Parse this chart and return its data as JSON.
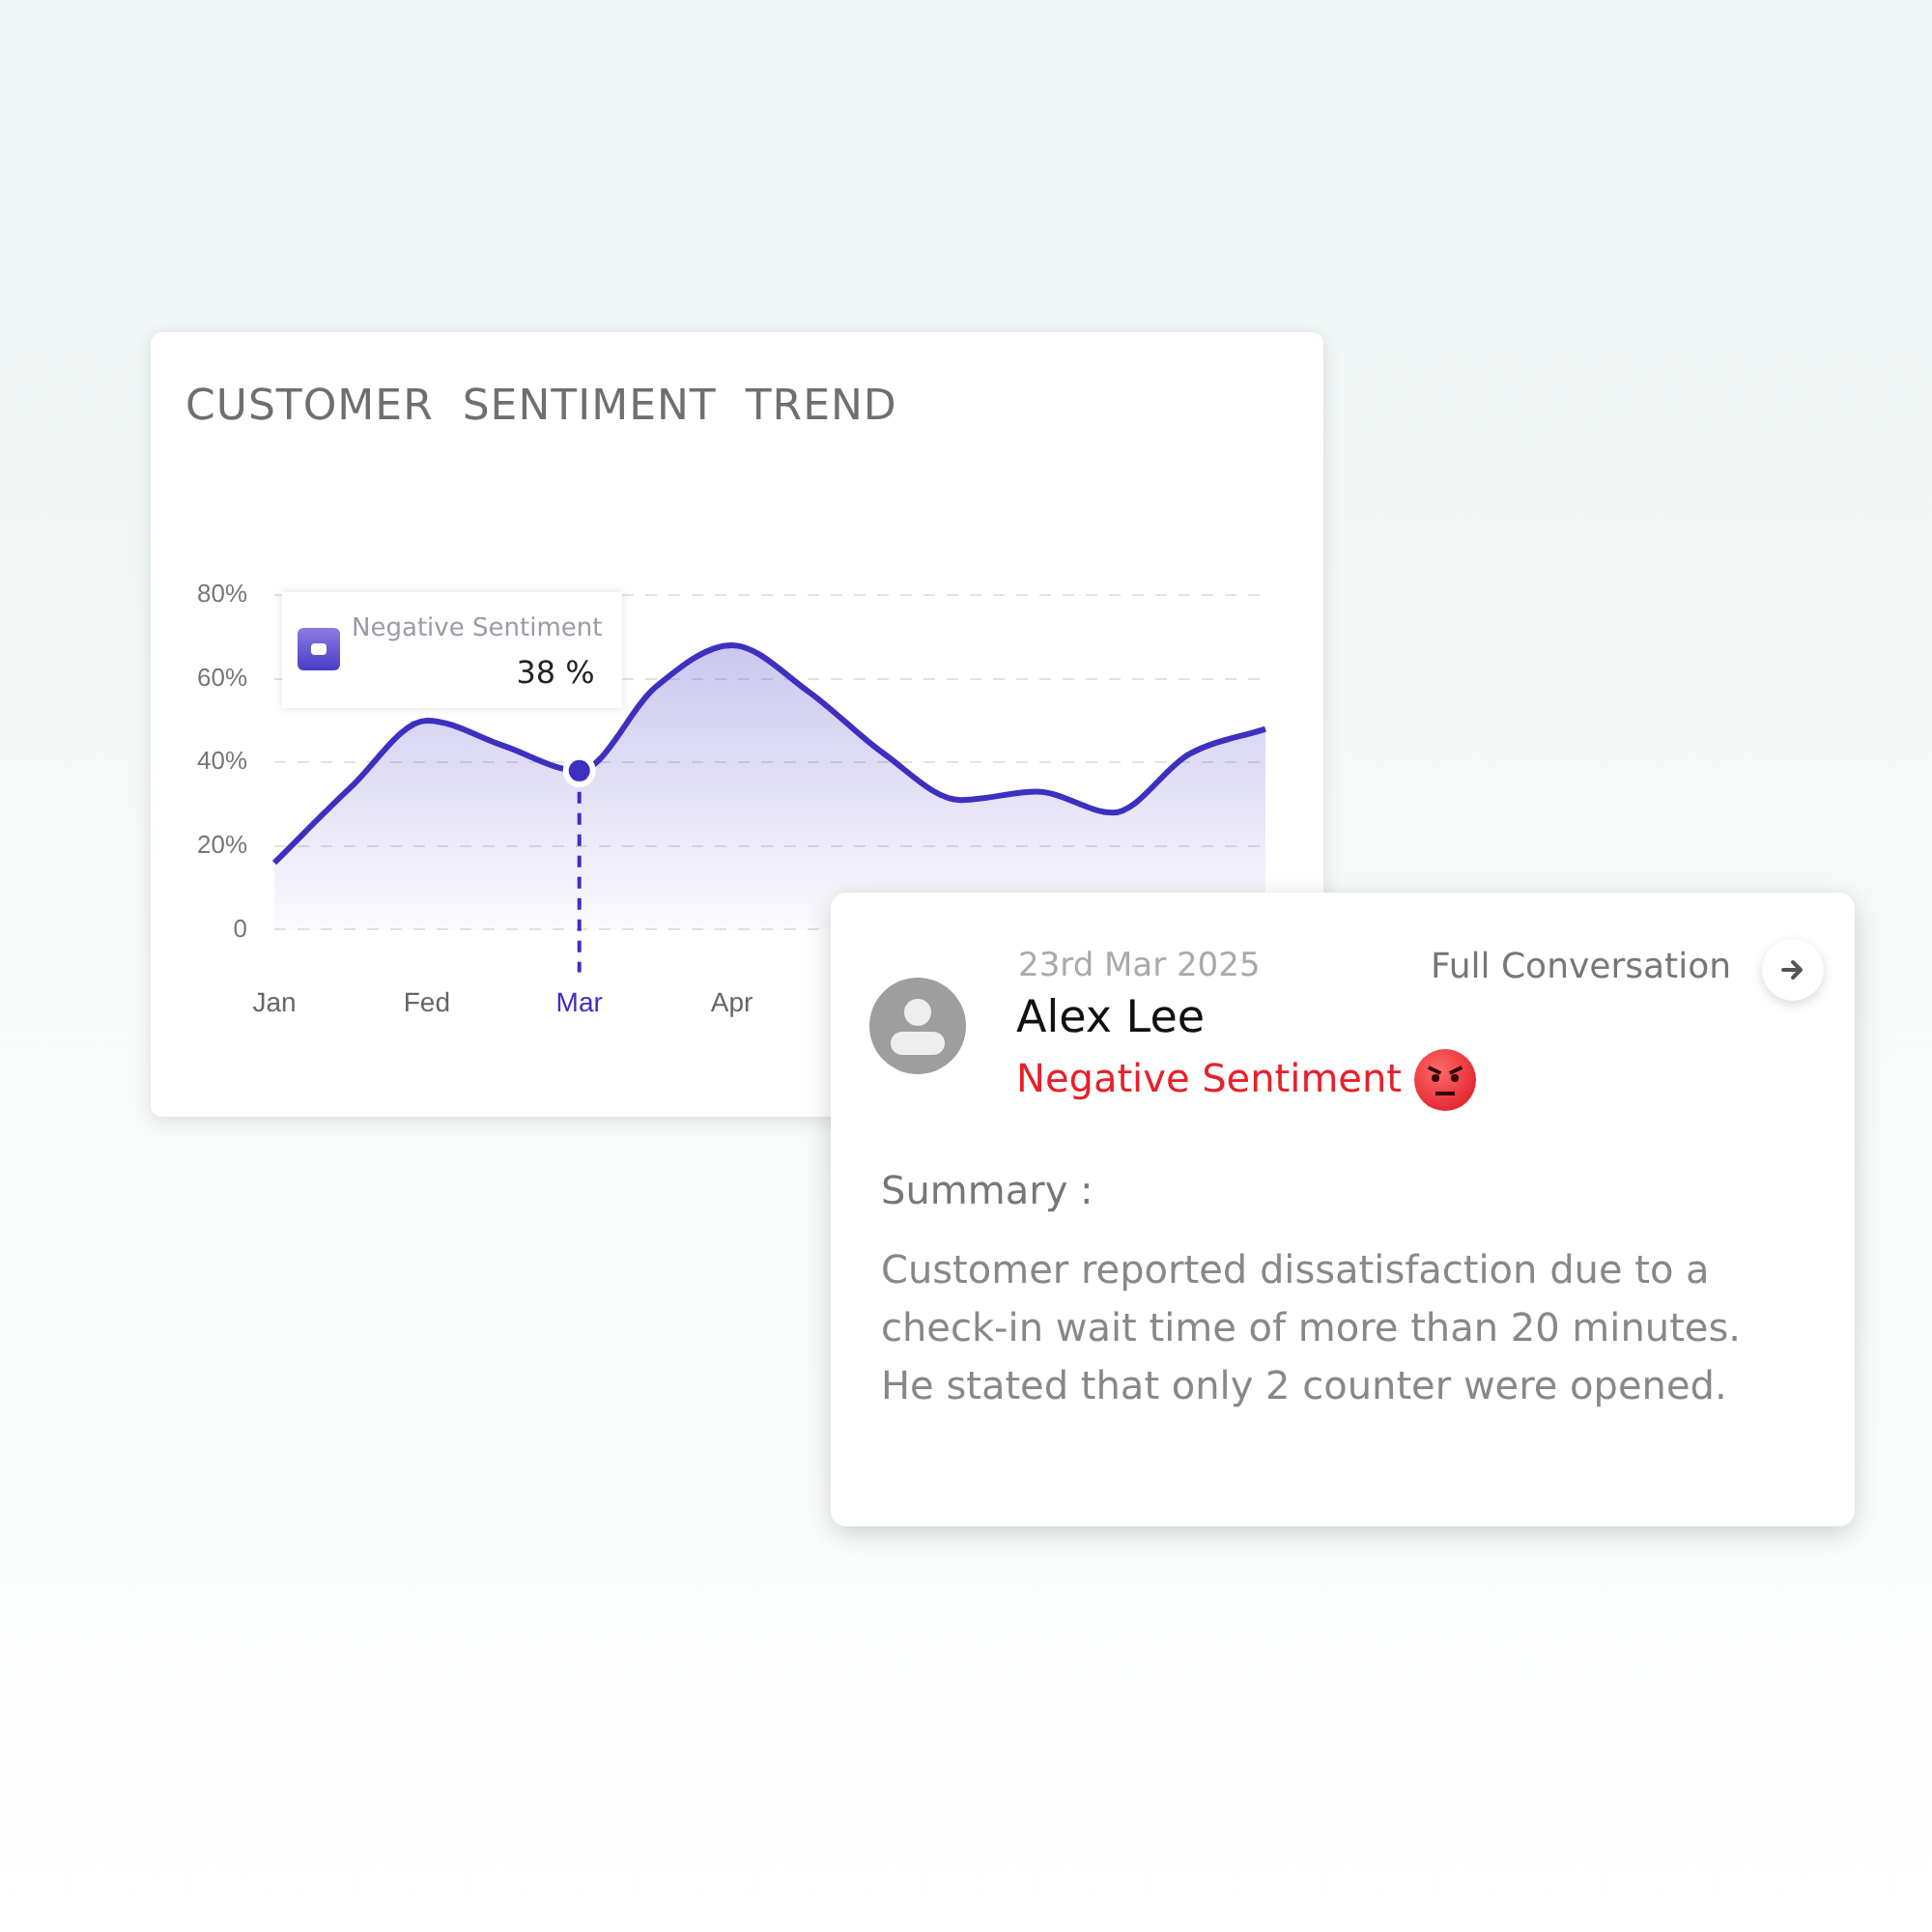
{
  "chart_data": [
    {
      "type": "area",
      "title": "CUSTOMER  SENTIMENT  TREND",
      "categories": [
        "Jan",
        null,
        "Fed",
        null,
        "Mar",
        null,
        "Apr",
        null,
        null,
        null,
        null,
        null,
        null,
        null
      ],
      "series": [
        {
          "name": "Negative Sentiment",
          "color": "#3d2fc0",
          "values": [
            16,
            34,
            50,
            44,
            38,
            58,
            68,
            57,
            42,
            31,
            33,
            28,
            42,
            48
          ],
          "value_labels": [
            null,
            null,
            null,
            null,
            "38 %",
            null,
            null,
            null,
            null,
            null,
            null,
            null,
            null,
            null
          ]
        }
      ],
      "ylim": [
        0,
        80
      ],
      "yticks": [
        0,
        {
          "value": 20,
          "label": "20%"
        },
        {
          "value": 40,
          "label": "40%"
        },
        {
          "value": 60,
          "label": "60%"
        },
        {
          "value": 80,
          "label": "80%"
        }
      ],
      "grid": "y",
      "legend": false,
      "marker": "none",
      "ref_lines": [
        {
          "axis": "x",
          "value": "Mar",
          "color": "#3d2fc0",
          "line_style": "dashed"
        }
      ]
    },
    {
      "type": "other",
      "annotations": [
        "23rd Mar 2025",
        "Alex Lee",
        "Negative Sentiment",
        "Full Conversation",
        "Summary :",
        "Customer reported dissatisfaction due to a check-in wait time of more than 20 minutes. He stated that only 2 counter were opened."
      ]
    }
  ]
}
